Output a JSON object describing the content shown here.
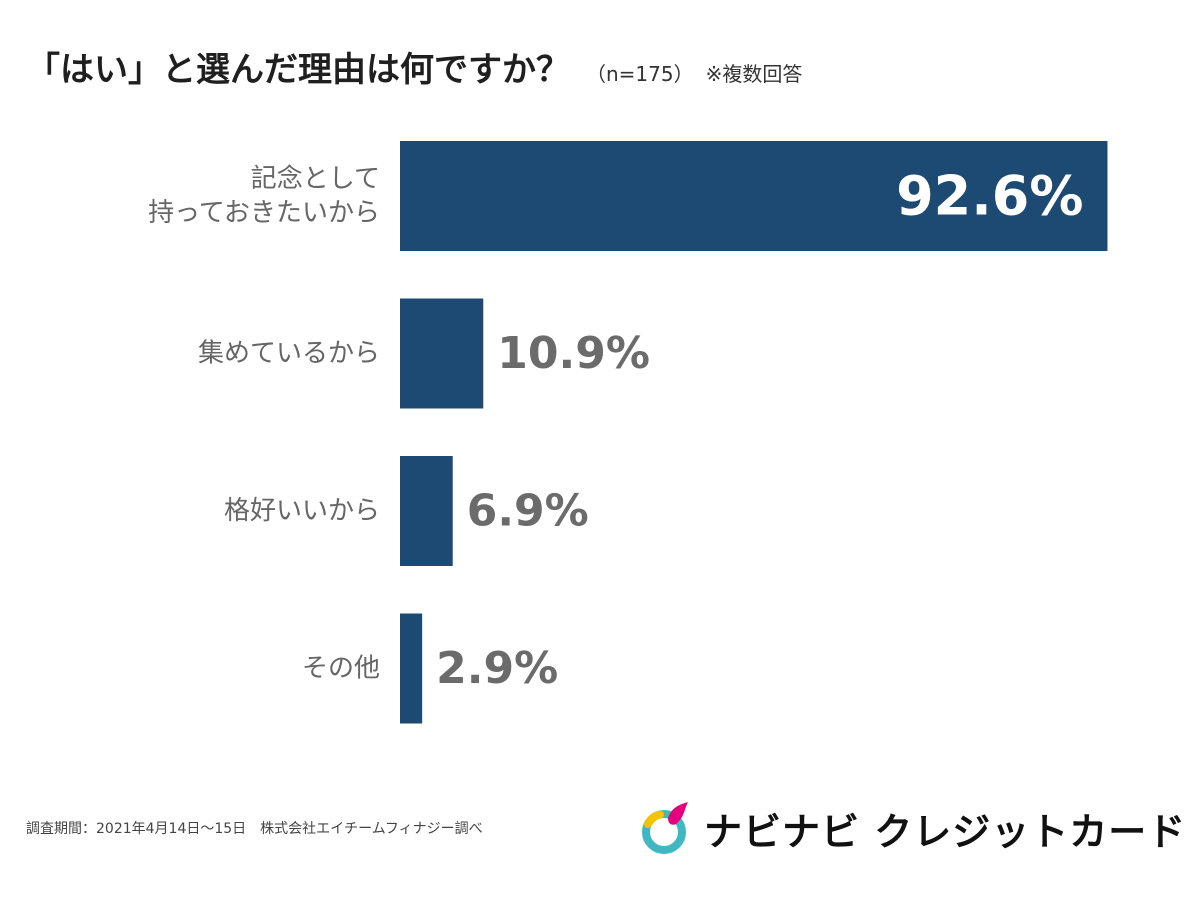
{
  "header": {
    "title": "「はい」と選んだ理由は何ですか？",
    "subtitle": "（n=175）",
    "note": "※複数回答"
  },
  "footer": {
    "source": "調査期間：2021年4月14日〜15日　株式会社エイチームフィナジー調べ",
    "brand": "ナビナビ クレジットカード"
  },
  "colors": {
    "bar": "#1d4a72",
    "bar_value_inside": "#ffffff",
    "bar_value_outside": "#6b6b6b",
    "category_label": "#666666",
    "logo_pink": "#e4007f",
    "logo_yellow": "#f5c400",
    "logo_teal": "#3fb8c1"
  },
  "chart_data": {
    "type": "bar",
    "orientation": "horizontal",
    "categories": [
      [
        "記念として",
        "持っておきたいから"
      ],
      [
        "集めているから"
      ],
      [
        "格好いいから"
      ],
      [
        "その他"
      ]
    ],
    "values": [
      92.6,
      10.9,
      6.9,
      2.9
    ],
    "value_labels": [
      "92.6%",
      "10.9%",
      "6.9%",
      "2.9%"
    ],
    "xlim": [
      0,
      100
    ],
    "grid": false,
    "legend": "none"
  }
}
